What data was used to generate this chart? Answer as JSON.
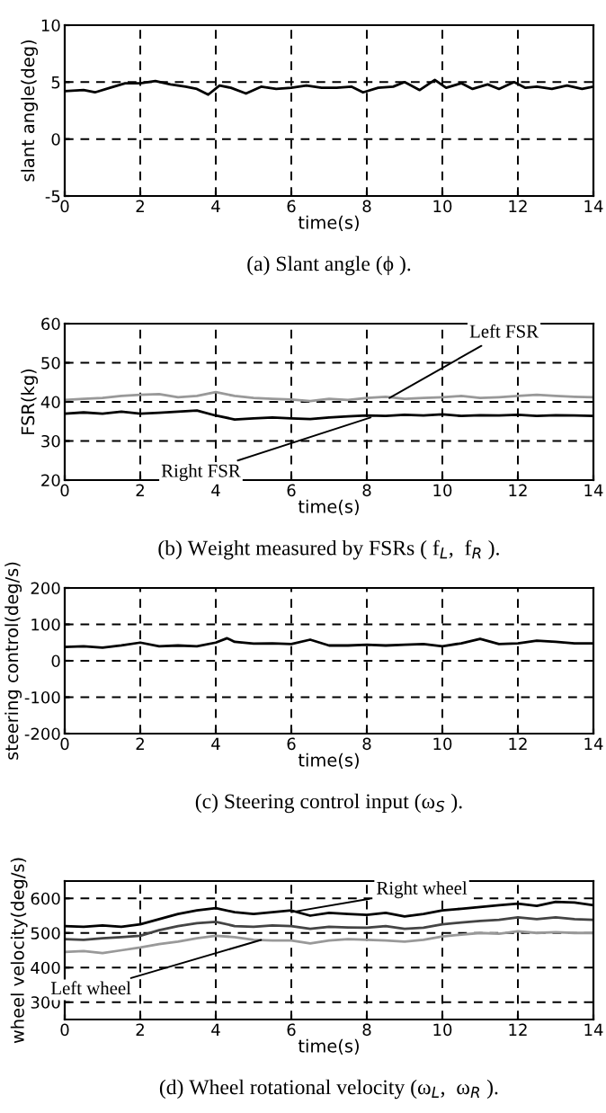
{
  "chart_data": [
    {
      "type": "line",
      "title": "(a) Slant angle (ϕ ).",
      "xlabel": "time(s)",
      "ylabel": "slant angle(deg)",
      "xlim": [
        0,
        14
      ],
      "ylim": [
        -5,
        10
      ],
      "xticks": [
        0,
        2,
        4,
        6,
        8,
        10,
        12,
        14
      ],
      "yticks": [
        -5,
        0,
        5,
        10
      ],
      "grid": true,
      "series": [
        {
          "color": "#000000",
          "x": [
            0,
            0.5,
            0.8,
            1.2,
            1.6,
            2.0,
            2.4,
            2.8,
            3.2,
            3.5,
            3.8,
            4.1,
            4.4,
            4.8,
            5.2,
            5.6,
            6.0,
            6.4,
            6.8,
            7.2,
            7.6,
            7.9,
            8.3,
            8.7,
            9.0,
            9.4,
            9.8,
            10.1,
            10.5,
            10.8,
            11.2,
            11.5,
            11.9,
            12.2,
            12.5,
            12.9,
            13.3,
            13.7,
            14.0
          ],
          "values": [
            4.2,
            4.3,
            4.1,
            4.5,
            4.9,
            4.9,
            5.1,
            4.8,
            4.6,
            4.4,
            3.9,
            4.7,
            4.5,
            4.0,
            4.6,
            4.4,
            4.5,
            4.7,
            4.5,
            4.5,
            4.6,
            4.1,
            4.5,
            4.6,
            5.0,
            4.3,
            5.2,
            4.5,
            4.9,
            4.4,
            4.8,
            4.4,
            5.0,
            4.5,
            4.6,
            4.4,
            4.7,
            4.4,
            4.6
          ]
        }
      ]
    },
    {
      "type": "line",
      "title": "(b) Weight measured by FSRs ( f$_{L}$,  f$_{R}$ ).",
      "xlabel": "time(s)",
      "ylabel": "FSR(kg)",
      "xlim": [
        0,
        14
      ],
      "ylim": [
        20,
        60
      ],
      "xticks": [
        0,
        2,
        4,
        6,
        8,
        10,
        12,
        14
      ],
      "yticks": [
        20,
        30,
        40,
        50,
        60
      ],
      "grid": true,
      "annotations": [
        {
          "text": "Left FSR",
          "x": 8.6,
          "y": 41
        },
        {
          "text": "Right FSR",
          "x": 8.1,
          "y": 36
        }
      ],
      "series": [
        {
          "color": "#999999",
          "x": [
            0,
            0.5,
            1,
            1.5,
            2,
            2.5,
            3,
            3.5,
            4,
            4.5,
            5,
            5.5,
            6,
            6.5,
            7,
            7.5,
            8,
            8.5,
            9,
            9.5,
            10,
            10.5,
            11,
            11.5,
            12,
            12.5,
            13,
            13.5,
            14
          ],
          "values": [
            40.5,
            40.8,
            41,
            41.5,
            41.8,
            42,
            41.2,
            41.5,
            42.5,
            41.5,
            41,
            40.8,
            40.6,
            40.2,
            40.8,
            40.5,
            41,
            41.3,
            40.8,
            41,
            41.2,
            41.5,
            41,
            41.2,
            41.5,
            41.8,
            41.5,
            41.3,
            41.2
          ]
        },
        {
          "color": "#000000",
          "x": [
            0,
            0.5,
            1,
            1.5,
            2,
            2.5,
            3,
            3.5,
            4,
            4.5,
            5,
            5.5,
            6,
            6.5,
            7,
            7.5,
            8,
            8.5,
            9,
            9.5,
            10,
            10.5,
            11,
            11.5,
            12,
            12.5,
            13,
            13.5,
            14
          ],
          "values": [
            37,
            37.3,
            37,
            37.5,
            37,
            37.2,
            37.5,
            37.8,
            36.5,
            35.5,
            35.8,
            36,
            35.8,
            35.6,
            36,
            36.3,
            36.5,
            36.4,
            36.7,
            36.5,
            36.8,
            36.4,
            36.6,
            36.5,
            36.7,
            36.4,
            36.6,
            36.5,
            36.4
          ]
        }
      ]
    },
    {
      "type": "line",
      "title": "(c) Steering control input (ω$_{S}$ ).",
      "xlabel": "time(s)",
      "ylabel": "steering control(deg/s)",
      "xlim": [
        0,
        14
      ],
      "ylim": [
        -200,
        200
      ],
      "xticks": [
        0,
        2,
        4,
        6,
        8,
        10,
        12,
        14
      ],
      "yticks": [
        -200,
        -100,
        0,
        100,
        200
      ],
      "grid": true,
      "series": [
        {
          "color": "#000000",
          "x": [
            0,
            0.5,
            1,
            1.5,
            2,
            2.5,
            3,
            3.5,
            4,
            4.3,
            4.5,
            5,
            5.5,
            6,
            6.5,
            7,
            7.5,
            8,
            8.5,
            9,
            9.5,
            10,
            10.5,
            11,
            11.5,
            12,
            12.5,
            13,
            13.5,
            14
          ],
          "values": [
            38,
            40,
            36,
            42,
            50,
            40,
            42,
            40,
            50,
            62,
            52,
            47,
            48,
            46,
            58,
            42,
            42,
            44,
            42,
            44,
            46,
            40,
            48,
            60,
            46,
            48,
            55,
            52,
            48,
            48
          ]
        }
      ]
    },
    {
      "type": "line",
      "title": "(d) Wheel rotational velocity (ω$_{L}$,  ω$_{R}$ ).",
      "xlabel": "time(s)",
      "ylabel": "wheel velocity(deg/s)",
      "xlim": [
        0,
        14
      ],
      "ylim": [
        250,
        650
      ],
      "xticks": [
        0,
        2,
        4,
        6,
        8,
        10,
        12,
        14
      ],
      "yticks": [
        300,
        400,
        500,
        600
      ],
      "grid": true,
      "annotations": [
        {
          "text": "Right wheel",
          "x": 6,
          "y": 560
        },
        {
          "text": "Left wheel",
          "x": 5.2,
          "y": 480
        }
      ],
      "series": [
        {
          "color": "#000000",
          "x": [
            0,
            0.5,
            1,
            1.5,
            2,
            2.5,
            3,
            3.5,
            4,
            4.5,
            5,
            5.5,
            6,
            6.5,
            7,
            7.5,
            8,
            8.5,
            9,
            9.5,
            10,
            10.5,
            11,
            11.5,
            12,
            12.5,
            13,
            13.5,
            14
          ],
          "values": [
            520,
            518,
            522,
            518,
            525,
            540,
            555,
            565,
            572,
            560,
            555,
            560,
            565,
            550,
            558,
            555,
            552,
            558,
            548,
            555,
            565,
            570,
            575,
            580,
            585,
            578,
            590,
            588,
            580
          ]
        },
        {
          "color": "#444444",
          "x": [
            0,
            0.5,
            1,
            1.5,
            2,
            2.5,
            3,
            3.5,
            4,
            4.5,
            5,
            5.5,
            6,
            6.5,
            7,
            7.5,
            8,
            8.5,
            9,
            9.5,
            10,
            10.5,
            11,
            11.5,
            12,
            12.5,
            13,
            13.5,
            14
          ],
          "values": [
            482,
            480,
            485,
            488,
            492,
            508,
            520,
            528,
            532,
            520,
            518,
            522,
            520,
            512,
            518,
            516,
            515,
            520,
            512,
            515,
            525,
            530,
            535,
            538,
            545,
            540,
            545,
            540,
            538
          ]
        },
        {
          "color": "#999999",
          "x": [
            0,
            0.5,
            1,
            1.5,
            2,
            2.5,
            3,
            3.5,
            4,
            4.5,
            5,
            5.5,
            6,
            6.5,
            7,
            7.5,
            8,
            8.5,
            9,
            9.5,
            10,
            10.5,
            11,
            11.5,
            12,
            12.5,
            13,
            13.5,
            14
          ],
          "values": [
            445,
            448,
            442,
            450,
            458,
            468,
            475,
            485,
            492,
            488,
            480,
            478,
            478,
            470,
            478,
            482,
            480,
            478,
            475,
            480,
            490,
            495,
            500,
            498,
            505,
            500,
            502,
            500,
            500
          ]
        }
      ]
    }
  ]
}
